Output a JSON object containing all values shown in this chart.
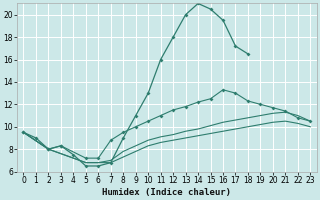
{
  "xlabel": "Humidex (Indice chaleur)",
  "bg_color": "#cce8e8",
  "grid_color": "#ffffff",
  "line_color": "#2e7d6e",
  "xlim": [
    -0.5,
    23.5
  ],
  "ylim": [
    6,
    21
  ],
  "xticks": [
    0,
    1,
    2,
    3,
    4,
    5,
    6,
    7,
    8,
    9,
    10,
    11,
    12,
    13,
    14,
    15,
    16,
    17,
    18,
    19,
    20,
    21,
    22,
    23
  ],
  "yticks": [
    6,
    8,
    10,
    12,
    14,
    16,
    18,
    20
  ],
  "s1_x": [
    0,
    1,
    2,
    3,
    4,
    5,
    6,
    7,
    8,
    9,
    10,
    11,
    12,
    13,
    14,
    15,
    16,
    17,
    18
  ],
  "s1_y": [
    9.5,
    9.0,
    8.0,
    8.3,
    7.5,
    6.5,
    6.5,
    6.8,
    9.0,
    11.0,
    13.0,
    16.0,
    18.0,
    20.0,
    21.0,
    20.5,
    19.5,
    17.2,
    16.5
  ],
  "s2_x": [
    0,
    2,
    3,
    5,
    6,
    7,
    8,
    9,
    10,
    11,
    12,
    13,
    14,
    15,
    16,
    17,
    18,
    19,
    20,
    21,
    22,
    23
  ],
  "s2_y": [
    9.5,
    8.0,
    8.3,
    7.2,
    7.2,
    8.8,
    9.5,
    10.0,
    10.5,
    11.0,
    11.5,
    11.8,
    12.2,
    12.5,
    13.3,
    13.0,
    12.3,
    12.0,
    11.7,
    11.4,
    10.8,
    10.5
  ],
  "s3_x": [
    0,
    2,
    5,
    6,
    7,
    8,
    9,
    10,
    11,
    12,
    13,
    14,
    15,
    16,
    17,
    18,
    19,
    20,
    21,
    22,
    23
  ],
  "s3_y": [
    9.5,
    8.0,
    6.8,
    6.8,
    7.0,
    7.8,
    8.3,
    8.8,
    9.1,
    9.3,
    9.6,
    9.8,
    10.1,
    10.4,
    10.6,
    10.8,
    11.0,
    11.2,
    11.3,
    11.0,
    10.5
  ],
  "s4_x": [
    0,
    2,
    5,
    6,
    7,
    8,
    9,
    10,
    11,
    12,
    13,
    14,
    15,
    16,
    17,
    18,
    19,
    20,
    21,
    22,
    23
  ],
  "s4_y": [
    9.5,
    8.0,
    6.8,
    6.8,
    6.8,
    7.3,
    7.8,
    8.3,
    8.6,
    8.8,
    9.0,
    9.2,
    9.4,
    9.6,
    9.8,
    10.0,
    10.2,
    10.4,
    10.5,
    10.3,
    10.0
  ]
}
